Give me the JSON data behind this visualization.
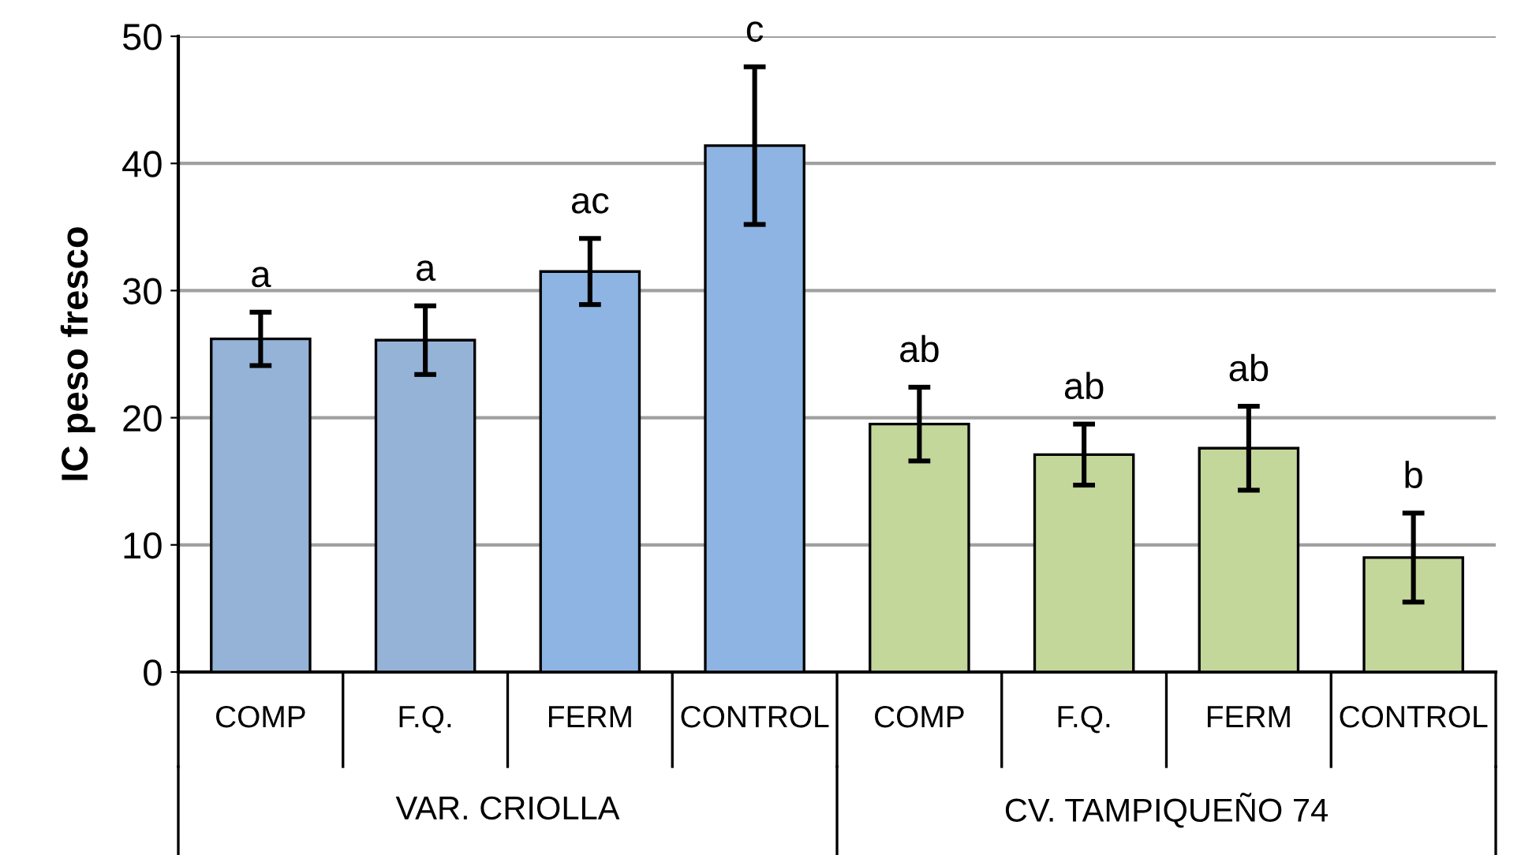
{
  "chart_data": {
    "type": "bar",
    "ylabel": "IC peso fresco",
    "categories": [
      "COMP",
      "F.Q.",
      "FERM",
      "CONTROL",
      "COMP",
      "F.Q.",
      "FERM",
      "CONTROL"
    ],
    "values": [
      26.2,
      26.1,
      31.5,
      41.4,
      19.5,
      17.1,
      17.6,
      9.0
    ],
    "errors": [
      2.1,
      2.7,
      2.6,
      6.2,
      2.9,
      2.4,
      3.3,
      3.5
    ],
    "colors": [
      "#95b3d7",
      "#95b3d7",
      "#8db4e2",
      "#8db4e2",
      "#c4d79b",
      "#c4d79b",
      "#c4d79b",
      "#c4d79b"
    ],
    "value_labels": [
      "a",
      "a",
      "ac",
      "c",
      "ab",
      "ab",
      "ab",
      "b"
    ],
    "annotations": [
      "VAR. CRIOLLA",
      "CV. TAMPIQUEÑO 74"
    ],
    "ylim": [
      0,
      50
    ],
    "yticks": [
      0,
      10,
      20,
      30,
      40,
      50
    ],
    "grid": "y"
  }
}
